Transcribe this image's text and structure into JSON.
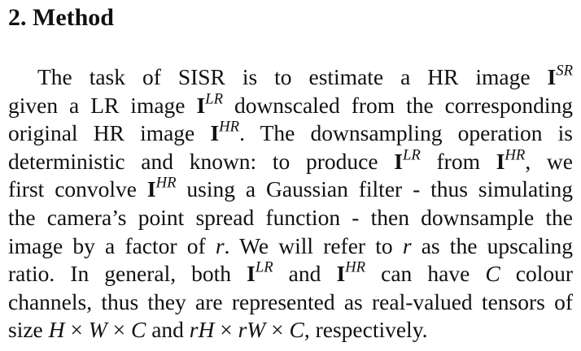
{
  "section": {
    "heading": "2. Method"
  },
  "paragraph": {
    "l1": {
      "a": "The task of SISR is to estimate a HR image ",
      "b": "I",
      "c": "SR"
    },
    "l2": {
      "a": "given a LR image ",
      "b": "I",
      "c": "LR",
      "d": " downscaled from the corresponding"
    },
    "l3": {
      "a": "original HR image ",
      "b": "I",
      "c": "HR",
      "d": ".  The downsampling operation is"
    },
    "l4": {
      "a": "deterministic and known:  to produce ",
      "b": "I",
      "c": "LR",
      "d": " from ",
      "e": "I",
      "f": "HR",
      "g": ", we"
    },
    "l5": {
      "a": "first convolve ",
      "b": "I",
      "c": "HR",
      "d": " using a Gaussian filter - thus simulating"
    },
    "l6": {
      "a": "the camera’s point spread function - then downsample the"
    },
    "l7": {
      "a": "image by a factor of ",
      "b": "r",
      "c": ".  We will refer to ",
      "d": "r",
      "e": " as the upscaling"
    },
    "l8": {
      "a": "ratio.  In general, both ",
      "b": "I",
      "c": "LR",
      "d": " and ",
      "e": "I",
      "f": "HR",
      "g": " can have ",
      "h": "C",
      "i": " colour"
    },
    "l9": {
      "a": "channels, thus they are represented as real-valued tensors of"
    },
    "l10": {
      "a": "size ",
      "b": "H",
      "c": " × ",
      "d": "W",
      "e": " × ",
      "f": "C",
      "g": " and ",
      "h": "rH",
      "i": " × ",
      "j": "rW",
      "k": " × ",
      "l": "C",
      "m": ", respectively."
    }
  }
}
